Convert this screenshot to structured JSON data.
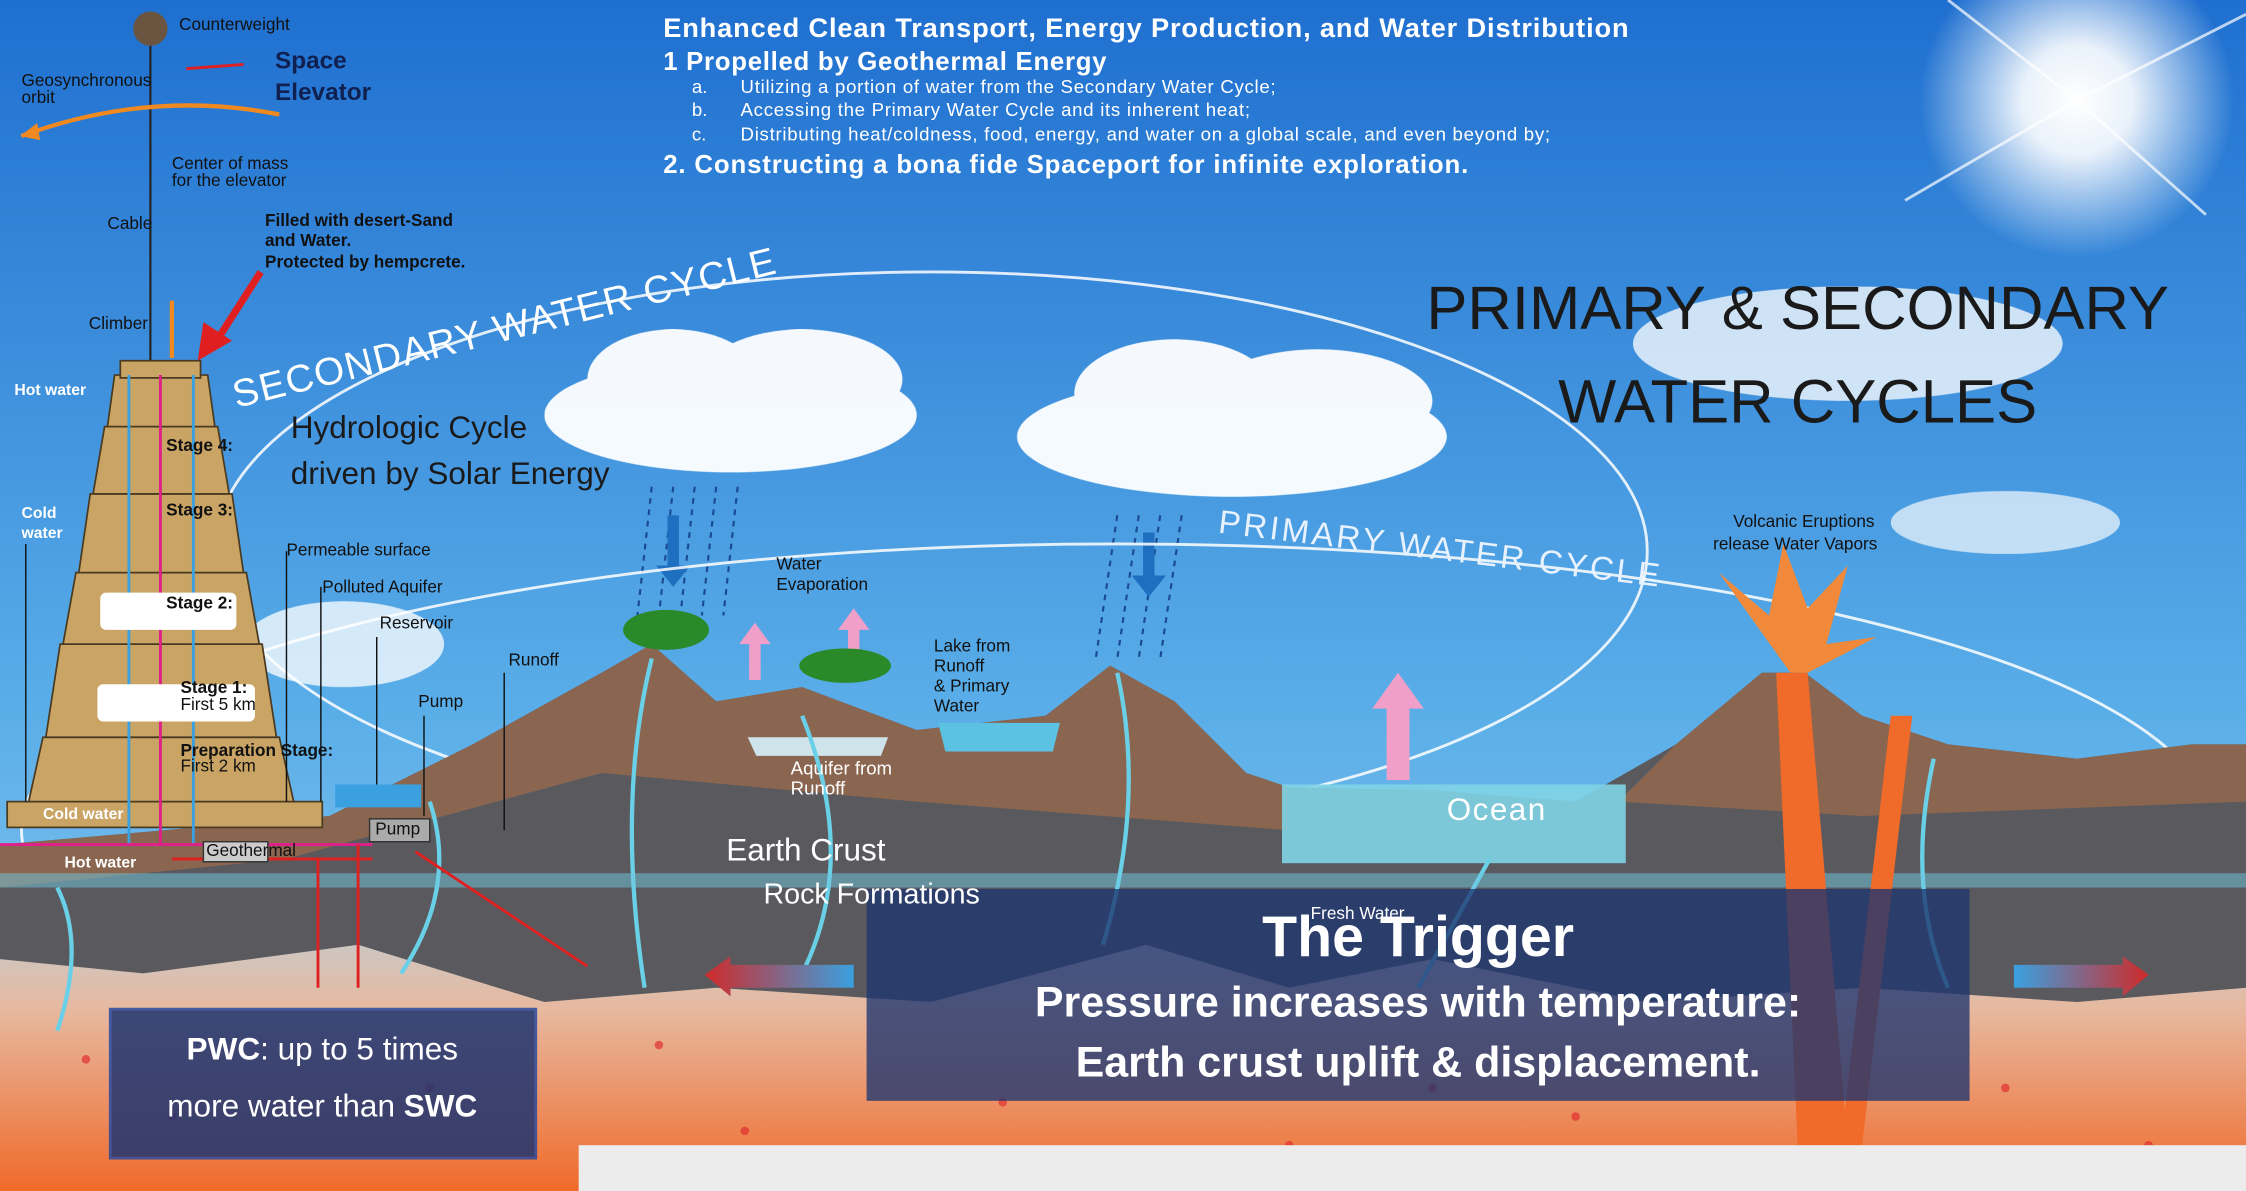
{
  "header": {
    "title": "Enhanced Clean Transport, Energy Production, and Water Distribution",
    "point1": "1 Propelled by Geothermal Energy",
    "items": [
      {
        "marker": "a.",
        "text": "Utilizing a portion of water from the Secondary Water Cycle;"
      },
      {
        "marker": "b.",
        "text": "Accessing the Primary Water Cycle and its inherent heat;"
      },
      {
        "marker": "c.",
        "text": "Distributing heat/coldness, food, energy, and water on a global scale, and even beyond by;"
      }
    ],
    "point2": "2. Constructing a bona fide Spaceport for infinite exploration."
  },
  "main_title": [
    "PRIMARY  & SECONDARY",
    "WATER CYCLES"
  ],
  "elevator": {
    "counterweight": "Counterweight",
    "title": [
      "Space",
      "Elevator"
    ],
    "orbit": [
      "Geosynchronous",
      "orbit"
    ],
    "center": [
      "Center of mass",
      "for the elevator"
    ],
    "cable": "Cable",
    "filled": [
      "Filled with desert-Sand",
      "and Water.",
      "Protected by hempcrete."
    ],
    "climber": "Climber",
    "hot_water_top": "Hot water",
    "cold_water_side": [
      "Cold",
      "water"
    ],
    "stages": [
      "Stage 4:",
      "Stage 3:",
      "Stage 2:",
      "Stage 1:",
      "Preparation Stage:"
    ],
    "stage_notes": [
      "First 5 km",
      "First 2 km"
    ],
    "cold_water_bottom": "Cold water",
    "hot_water_bottom": "Hot water",
    "geothermal": "Geothermal",
    "pump": "Pump"
  },
  "labels": {
    "secondary_cycle": "SECONDARY WATER CYCLE",
    "primary_cycle": "PRIMARY WATER CYCLE",
    "hydrologic": [
      "Hydrologic Cycle",
      "driven by Solar Energy"
    ],
    "permeable": "Permeable surface",
    "polluted": "Polluted Aquifer",
    "reservoir": "Reservoir",
    "pump": "Pump",
    "runoff": "Runoff",
    "evaporation": [
      "Water",
      "Evaporation"
    ],
    "lake": [
      "Lake from",
      "Runoff",
      "& Primary",
      "Water"
    ],
    "aquifer": [
      "Aquifer from",
      "Runoff"
    ],
    "volcanic": [
      "Volcanic Eruptions",
      "release Water Vapors"
    ],
    "ocean": "Ocean",
    "crust": [
      "Earth Crust",
      "Rock Formations"
    ],
    "fresh": "Fresh Water"
  },
  "trigger": {
    "title": "The Trigger",
    "lines": [
      "Pressure increases with temperature:",
      "Earth crust uplift & displacement."
    ]
  },
  "pwc_box": {
    "pwc": "PWC",
    "rest1": ": up to 5 times",
    "rest2": "more water than ",
    "swc": "SWC"
  }
}
